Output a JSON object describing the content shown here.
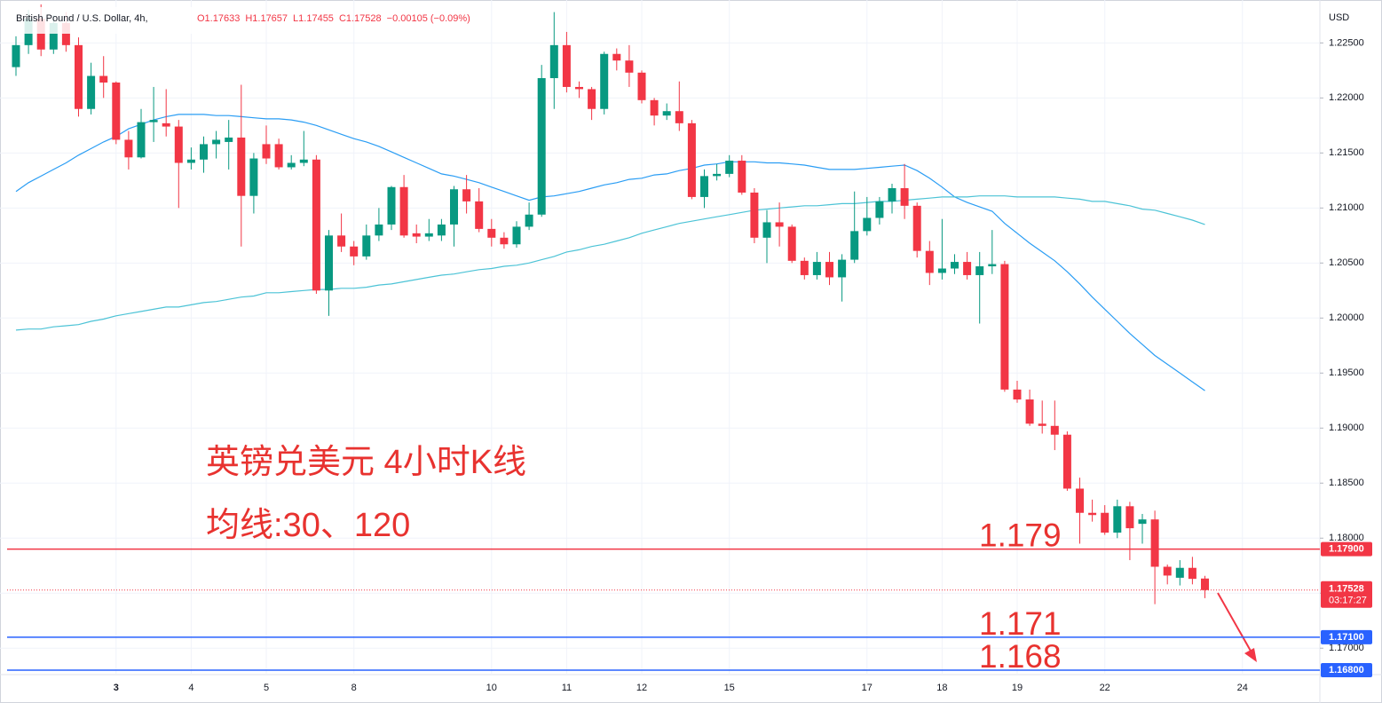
{
  "chart_data": {
    "type": "candlestick",
    "title": "British Pound / U.S. Dollar, 4h,",
    "ohlc_header": [
      "O1.17633",
      "H1.17657",
      "L1.17455",
      "C1.17528",
      "−0.00105 (−0.09%)"
    ],
    "y_axis_label": "USD",
    "annotations": [
      "英镑兑美元 4小时K线",
      "均线:30、120"
    ],
    "up_color": "#089981",
    "down_color": "#f23645",
    "grid": true,
    "categories": [
      null,
      null,
      null,
      null,
      null,
      null,
      null,
      null,
      "3",
      null,
      null,
      null,
      null,
      null,
      "4",
      null,
      null,
      null,
      null,
      null,
      "5",
      null,
      null,
      null,
      null,
      null,
      null,
      "8",
      null,
      null,
      null,
      null,
      null,
      null,
      null,
      null,
      null,
      null,
      "10",
      null,
      null,
      null,
      null,
      null,
      "11",
      null,
      null,
      null,
      null,
      null,
      "12",
      null,
      null,
      null,
      null,
      null,
      null,
      "15",
      null,
      null,
      null,
      null,
      null,
      null,
      null,
      null,
      null,
      null,
      "17",
      null,
      null,
      null,
      null,
      null,
      "18",
      null,
      null,
      null,
      null,
      null,
      "19",
      null,
      null,
      null,
      null,
      null,
      null,
      "22",
      null,
      null,
      null,
      null,
      null,
      null,
      null,
      null,
      null,
      null,
      "24"
    ],
    "open": [
      1.2228,
      1.2248,
      1.2272,
      1.2244,
      1.2268,
      1.2248,
      1.219,
      1.222,
      1.2214,
      1.2162,
      1.2146,
      1.2178,
      1.2177,
      1.2174,
      1.2141,
      1.2144,
      1.2158,
      1.216,
      1.2164,
      1.2111,
      1.2158,
      1.2158,
      1.2137,
      1.2141,
      1.2144,
      1.2025,
      1.2075,
      1.2065,
      1.2056,
      1.2075,
      1.2085,
      1.2119,
      1.2077,
      1.2074,
      1.2075,
      1.2085,
      1.2117,
      1.2106,
      1.2081,
      1.2073,
      1.2067,
      1.2083,
      1.2094,
      1.2218,
      1.2248,
      1.221,
      1.2208,
      1.219,
      1.224,
      1.2234,
      1.2223,
      1.2198,
      1.2184,
      1.2188,
      1.2177,
      1.211,
      1.2129,
      1.2131,
      1.2143,
      1.2114,
      1.2073,
      1.2087,
      1.2083,
      1.2052,
      1.2039,
      1.2051,
      1.2037,
      1.2053,
      1.2079,
      1.2091,
      1.2106,
      1.2118,
      1.2102,
      1.2061,
      1.2041,
      1.2045,
      1.2051,
      1.2039,
      1.2047,
      1.2049,
      1.1935,
      1.1926,
      1.1904,
      1.1902,
      1.1894,
      1.1845,
      1.1823,
      1.1823,
      1.1805,
      1.1829,
      1.1813,
      1.1817,
      1.1774,
      1.1764,
      1.1773,
      1.17633,
      null,
      null,
      null
    ],
    "high": [
      1.2256,
      1.228,
      1.2285,
      1.2275,
      1.2278,
      1.2255,
      1.2232,
      1.2238,
      1.2215,
      1.217,
      1.219,
      1.221,
      1.2208,
      1.218,
      1.2155,
      1.2165,
      1.217,
      1.218,
      1.2212,
      1.215,
      1.2175,
      1.2163,
      1.2148,
      1.217,
      1.2148,
      1.208,
      1.2095,
      1.207,
      1.2085,
      1.21,
      1.212,
      1.213,
      1.2085,
      1.209,
      1.209,
      1.212,
      1.213,
      1.2118,
      1.209,
      1.2078,
      1.2088,
      1.2105,
      1.223,
      1.2278,
      1.226,
      1.2215,
      1.221,
      1.2242,
      1.2245,
      1.2248,
      1.2225,
      1.22,
      1.2195,
      1.2215,
      1.218,
      1.2135,
      1.214,
      1.2148,
      1.2148,
      1.2118,
      1.2098,
      1.2105,
      1.2085,
      1.2055,
      1.206,
      1.206,
      1.2058,
      1.2115,
      1.211,
      1.211,
      1.2122,
      1.214,
      1.2105,
      1.207,
      1.209,
      1.2058,
      1.206,
      1.206,
      1.208,
      1.2052,
      1.1943,
      1.1935,
      1.1925,
      1.1925,
      1.1897,
      1.1855,
      1.1835,
      1.183,
      1.1835,
      1.1833,
      1.1822,
      1.1825,
      1.1776,
      1.178,
      1.1783,
      1.17657,
      null,
      null,
      null
    ],
    "low": [
      1.222,
      1.224,
      1.2238,
      1.224,
      1.2242,
      1.2183,
      1.2185,
      1.22,
      1.2158,
      1.2135,
      1.2145,
      1.216,
      1.2165,
      1.21,
      1.2135,
      1.2132,
      1.2145,
      1.2135,
      1.2065,
      1.2095,
      1.214,
      1.2135,
      1.2135,
      1.2138,
      1.2022,
      1.2002,
      1.206,
      1.2048,
      1.2053,
      1.207,
      1.208,
      1.2073,
      1.2068,
      1.207,
      1.207,
      1.2065,
      1.2095,
      1.2078,
      1.2065,
      1.2063,
      1.2064,
      1.208,
      1.2092,
      1.219,
      1.2205,
      1.22,
      1.218,
      1.2185,
      1.2225,
      1.221,
      1.2195,
      1.2175,
      1.218,
      1.217,
      1.2108,
      1.21,
      1.2125,
      1.2128,
      1.2112,
      1.2068,
      1.205,
      1.2065,
      1.205,
      1.2035,
      1.2035,
      1.203,
      1.2015,
      1.205,
      1.2075,
      1.2085,
      1.2095,
      1.209,
      1.2055,
      1.203,
      1.2035,
      1.204,
      1.2035,
      1.1995,
      1.204,
      1.1933,
      1.1923,
      1.1902,
      1.1895,
      1.188,
      1.1843,
      1.1795,
      1.1815,
      1.1803,
      1.18,
      1.178,
      1.1795,
      1.174,
      1.1758,
      1.1757,
      1.1758,
      1.17455,
      null,
      null,
      null
    ],
    "close": [
      1.2248,
      1.2272,
      1.2244,
      1.2268,
      1.2248,
      1.219,
      1.222,
      1.2214,
      1.2162,
      1.2146,
      1.2178,
      1.218,
      1.2174,
      1.2141,
      1.2144,
      1.2158,
      1.2162,
      1.2164,
      1.2111,
      1.2145,
      1.2145,
      1.2137,
      1.2141,
      1.2144,
      1.2025,
      1.2075,
      1.2065,
      1.2056,
      1.2075,
      1.2085,
      1.2119,
      1.2075,
      1.2074,
      1.2077,
      1.2085,
      1.2117,
      1.2106,
      1.2081,
      1.2073,
      1.2067,
      1.2083,
      1.2094,
      1.2218,
      1.2248,
      1.221,
      1.2208,
      1.219,
      1.224,
      1.2234,
      1.2223,
      1.2198,
      1.2184,
      1.2188,
      1.2177,
      1.211,
      1.2129,
      1.2131,
      1.2143,
      1.2114,
      1.2073,
      1.2087,
      1.2083,
      1.2052,
      1.2039,
      1.2051,
      1.2037,
      1.2053,
      1.2079,
      1.2091,
      1.2106,
      1.2118,
      1.2102,
      1.2061,
      1.2041,
      1.2045,
      1.2051,
      1.2039,
      1.2047,
      1.2049,
      1.1935,
      1.1926,
      1.1904,
      1.1902,
      1.1894,
      1.1845,
      1.1823,
      1.1821,
      1.1805,
      1.1829,
      1.1809,
      1.1817,
      1.1774,
      1.1766,
      1.1773,
      1.1763,
      1.17528,
      null,
      null,
      null
    ],
    "series": [
      {
        "name": "MA30",
        "color": "#2a9df4",
        "values": [
          1.2115,
          1.2123,
          1.2129,
          1.2135,
          1.2141,
          1.2148,
          1.2154,
          1.216,
          1.2165,
          1.2172,
          1.2176,
          1.218,
          1.2183,
          1.2185,
          1.2185,
          1.2185,
          1.2184,
          1.2184,
          1.2183,
          1.2182,
          1.2181,
          1.2181,
          1.218,
          1.2178,
          1.2175,
          1.2171,
          1.2167,
          1.2163,
          1.216,
          1.2156,
          1.2151,
          1.2146,
          1.2141,
          1.2136,
          1.2131,
          1.2129,
          1.2126,
          1.2123,
          1.2119,
          1.2115,
          1.2111,
          1.2107,
          1.211,
          1.2111,
          1.2113,
          1.2115,
          1.2118,
          1.2121,
          1.2123,
          1.2126,
          1.2127,
          1.213,
          1.2131,
          1.2134,
          1.2136,
          1.2139,
          1.214,
          1.2142,
          1.2142,
          1.2142,
          1.2141,
          1.2141,
          1.214,
          1.2139,
          1.2137,
          1.2135,
          1.2135,
          1.2135,
          1.2136,
          1.2137,
          1.2138,
          1.2139,
          1.2134,
          1.2127,
          1.2119,
          1.211,
          1.2105,
          1.2101,
          1.2097,
          1.2086,
          1.2077,
          1.2068,
          1.206,
          1.2052,
          1.2042,
          1.2031,
          1.2019,
          1.2008,
          1.1997,
          1.1986,
          1.1976,
          1.1966,
          1.1958,
          1.195,
          1.1942,
          1.1934,
          null,
          null,
          null
        ]
      },
      {
        "name": "MA120",
        "color": "#4cc3d6",
        "values": [
          1.1989,
          1.199,
          1.199,
          1.1992,
          1.1993,
          1.1994,
          1.1997,
          1.1999,
          1.2002,
          1.2004,
          1.2006,
          1.2008,
          1.201,
          1.201,
          1.2012,
          1.2014,
          1.2015,
          1.2017,
          1.2019,
          1.202,
          1.2023,
          1.2023,
          1.2024,
          1.2025,
          1.2026,
          1.2026,
          1.2027,
          1.2027,
          1.2028,
          1.203,
          1.2031,
          1.2033,
          1.2035,
          1.2037,
          1.2039,
          1.204,
          1.2042,
          1.2044,
          1.2045,
          1.2047,
          1.2048,
          1.205,
          1.2053,
          1.2056,
          1.206,
          1.2062,
          1.2065,
          1.2067,
          1.207,
          1.2073,
          1.2077,
          1.208,
          1.2083,
          1.2086,
          1.2088,
          1.209,
          1.2092,
          1.2094,
          1.2096,
          1.2098,
          1.2099,
          1.21,
          1.2101,
          1.2102,
          1.2102,
          1.2103,
          1.2104,
          1.2104,
          1.2105,
          1.2106,
          1.2106,
          1.2107,
          1.2108,
          1.2109,
          1.211,
          1.211,
          1.211,
          1.2111,
          1.2111,
          1.2111,
          1.211,
          1.211,
          1.211,
          1.211,
          1.2109,
          1.2108,
          1.2106,
          1.2106,
          1.2104,
          1.2102,
          1.2099,
          1.2098,
          1.2095,
          1.2092,
          1.2089,
          1.2085,
          null,
          null,
          null
        ]
      }
    ],
    "ylim": [
      1.1676,
      1.2289
    ],
    "yticks": [
      {
        "value": 1.17,
        "label": "1.17000"
      },
      {
        "value": 1.175,
        "label": "1.17500"
      },
      {
        "value": 1.18,
        "label": "1.18000"
      },
      {
        "value": 1.185,
        "label": "1.18500"
      },
      {
        "value": 1.19,
        "label": "1.19000"
      },
      {
        "value": 1.195,
        "label": "1.19500"
      },
      {
        "value": 1.2,
        "label": "1.20000"
      },
      {
        "value": 1.205,
        "label": "1.20500"
      },
      {
        "value": 1.21,
        "label": "1.21000"
      },
      {
        "value": 1.215,
        "label": "1.21500"
      },
      {
        "value": 1.22,
        "label": "1.22000"
      },
      {
        "value": 1.225,
        "label": "1.22500"
      }
    ],
    "price_lines": [
      {
        "value": 1.179,
        "label": "1.17900",
        "annotation": "1.179",
        "color": "#f23645"
      },
      {
        "value": 1.171,
        "label": "1.17100",
        "annotation": "1.171",
        "color": "#2962ff"
      },
      {
        "value": 1.168,
        "label": "1.16800",
        "annotation": "1.168",
        "color": "#2962ff"
      }
    ],
    "last_price": {
      "value": 1.17528,
      "label": "1.17528",
      "countdown": "03:17:27",
      "color": "#f23645"
    }
  }
}
